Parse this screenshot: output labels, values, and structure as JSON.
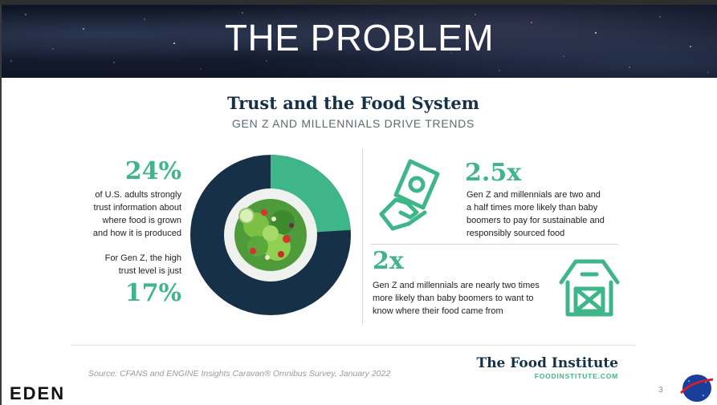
{
  "slide": {
    "title": "THE PROBLEM",
    "page_number": "3",
    "footer_logo": "EDEN",
    "nasa_logo": "NASA"
  },
  "infographic": {
    "title": "Trust and the Food System",
    "subtitle": "GEN Z AND MILLENNIALS DRIVE TRENDS",
    "left": {
      "stat_top": "24%",
      "lines_top": [
        "of U.S. adults strongly",
        "trust information about",
        "where food is grown",
        "and how it is produced"
      ],
      "lines_bottom": [
        "For Gen Z, the high",
        "trust level is just"
      ],
      "stat_bottom": "17%"
    },
    "donut": {
      "highlight_percent": 24,
      "highlight_color": "#3fb58a",
      "base_color": "#163147"
    },
    "right_top": {
      "stat": "2.5x",
      "lines": [
        "Gen Z and millennials are two and",
        "a half times more likely than baby",
        "boomers to pay for sustainable and",
        "responsibly sourced food"
      ],
      "icon": "hand-money-icon"
    },
    "right_bottom": {
      "stat": "2x",
      "lines": [
        "Gen Z and millennials are nearly two times",
        "more likely than baby boomers to want to",
        "know where their food came from"
      ],
      "icon": "barn-icon"
    },
    "source": "Source: CFANS and ENGINE Insights Caravan® Omnibus Survey, January 2022",
    "brand_name": "The Food Institute",
    "brand_url": "FOODINSTITUTE.COM"
  },
  "colors": {
    "accent": "#3fb58a",
    "navy": "#163147"
  }
}
